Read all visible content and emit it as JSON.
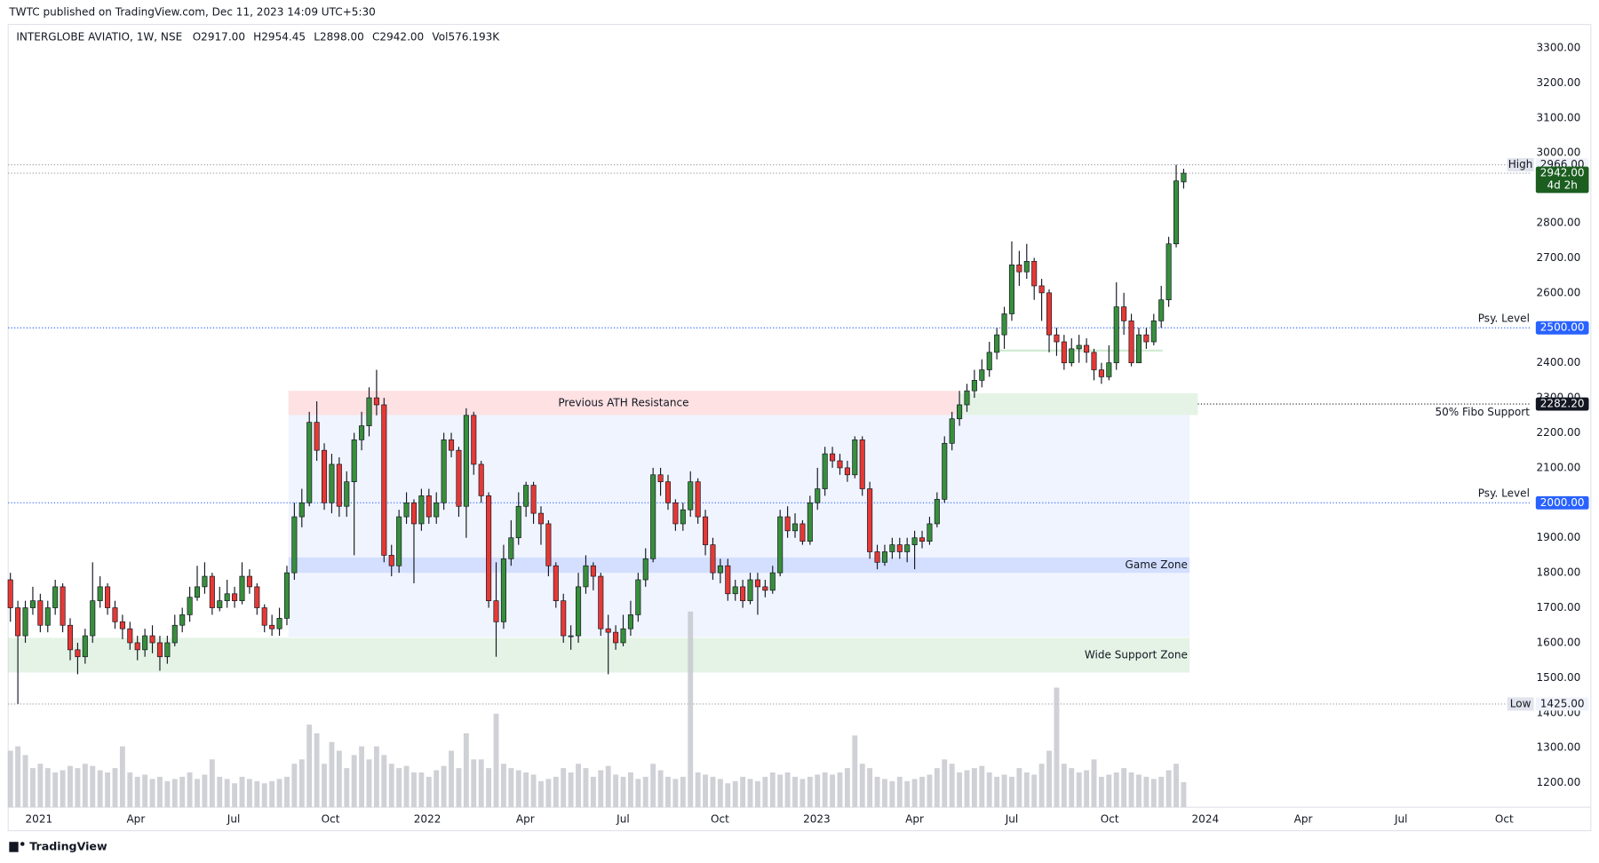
{
  "header": {
    "publisher": "TWTC published on TradingView.com, Dec 11, 2023 14:09 UTC+5:30"
  },
  "footer": {
    "brand": "TradingView"
  },
  "chart_data": {
    "type": "candlestick",
    "symbol": "INTERGLOBE AVIATIO, 1W, NSE",
    "legend_values": [
      {
        "label": "O",
        "text": "2917.00"
      },
      {
        "label": "H",
        "text": "2954.45"
      },
      {
        "label": "L",
        "text": "2898.00"
      },
      {
        "label": "C",
        "text": "2942.00"
      },
      {
        "label": "Vol",
        "text": "576.193K"
      }
    ],
    "up_color": "#388e3c",
    "down_color": "#e53935",
    "volume_color": "#c4c6cc",
    "grid": false,
    "xlim": [
      -0.3,
      203.3
    ],
    "xticks": [
      {
        "value": 3.82,
        "label": "2021"
      },
      {
        "value": 16.78,
        "label": "Apr"
      },
      {
        "value": 29.88,
        "label": "Jul"
      },
      {
        "value": 42.84,
        "label": "Oct"
      },
      {
        "value": 55.8,
        "label": "2022"
      },
      {
        "value": 68.9,
        "label": "Apr"
      },
      {
        "value": 81.99,
        "label": "Jul"
      },
      {
        "value": 94.95,
        "label": "Oct"
      },
      {
        "value": 107.9,
        "label": "2023"
      },
      {
        "value": 121.0,
        "label": "Apr"
      },
      {
        "value": 134.0,
        "label": "Jul"
      },
      {
        "value": 147.1,
        "label": "Oct"
      },
      {
        "value": 159.9,
        "label": "2024"
      },
      {
        "value": 173.0,
        "label": "Apr"
      },
      {
        "value": 186.1,
        "label": "Jul"
      },
      {
        "value": 199.9,
        "label": "Oct"
      }
    ],
    "ylim": [
      1130,
      3367
    ],
    "yticks": [
      {
        "value": 1200,
        "label": "1200.00"
      },
      {
        "value": 1300,
        "label": "1300.00"
      },
      {
        "value": 1400,
        "label": "1400.00"
      },
      {
        "value": 1500,
        "label": "1500.00"
      },
      {
        "value": 1600,
        "label": "1600.00"
      },
      {
        "value": 1700,
        "label": "1700.00"
      },
      {
        "value": 1800,
        "label": "1800.00"
      },
      {
        "value": 1900,
        "label": "1900.00"
      },
      {
        "value": 2000,
        "label": "2000.00"
      },
      {
        "value": 2100,
        "label": "2100.00"
      },
      {
        "value": 2200,
        "label": "2200.00"
      },
      {
        "value": 2300,
        "label": "2300.00"
      },
      {
        "value": 2400,
        "label": "2400.00"
      },
      {
        "value": 2500,
        "label": "2500.00"
      },
      {
        "value": 2600,
        "label": "2600.00"
      },
      {
        "value": 2700,
        "label": "2700.00"
      },
      {
        "value": 2800,
        "label": "2800.00"
      },
      {
        "value": 2900,
        "label": "2900.00"
      },
      {
        "value": 3000,
        "label": "3000.00"
      },
      {
        "value": 3100,
        "label": "3100.00"
      },
      {
        "value": 3200,
        "label": "3200.00"
      },
      {
        "value": 3300,
        "label": "3300.00"
      }
    ],
    "open": [
      1780,
      1700,
      1620,
      1700,
      1720,
      1650,
      1700,
      1760,
      1650,
      1580,
      1560,
      1620,
      1720,
      1760,
      1700,
      1660,
      1640,
      1600,
      1580,
      1620,
      1600,
      1560,
      1600,
      1650,
      1680,
      1730,
      1760,
      1790,
      1700,
      1720,
      1740,
      1720,
      1790,
      1760,
      1700,
      1650,
      1640,
      1670,
      1800,
      1960,
      2000,
      2230,
      2150,
      2000,
      2110,
      1990,
      2060,
      2180,
      2220,
      2300,
      2280,
      1850,
      1820,
      1960,
      2000,
      1940,
      2020,
      1960,
      2000,
      2180,
      2150,
      1990,
      2250,
      2110,
      2020,
      1720,
      1660,
      1840,
      1900,
      1990,
      2050,
      1970,
      1940,
      1820,
      1720,
      1620,
      1620,
      1760,
      1820,
      1790,
      1640,
      1630,
      1600,
      1640,
      1680,
      1780,
      1840,
      2080,
      2060,
      2000,
      1940,
      1980,
      2060,
      1960,
      1880,
      1800,
      1820,
      1740,
      1760,
      1720,
      1780,
      1760,
      1750,
      1800,
      1960,
      1920,
      1940,
      1890,
      2000,
      2040,
      2140,
      2120,
      2100,
      2080,
      2180,
      2040,
      1860,
      1830,
      1860,
      1880,
      1860,
      1880,
      1900,
      1890,
      1940,
      2010,
      2170,
      2240,
      2280,
      2320,
      2350,
      2380,
      2430,
      2480,
      2540,
      2680,
      2660,
      2690,
      2620,
      2600,
      2480,
      2460,
      2400,
      2440,
      2450,
      2430,
      2380,
      2360,
      2400,
      2560,
      2520,
      2400,
      2480,
      2460,
      2520,
      2580,
      2740,
      2917
    ],
    "high": [
      1800,
      1720,
      1720,
      1760,
      1740,
      1720,
      1780,
      1770,
      1670,
      1600,
      1640,
      1830,
      1790,
      1770,
      1720,
      1680,
      1660,
      1620,
      1640,
      1650,
      1620,
      1620,
      1680,
      1700,
      1760,
      1820,
      1830,
      1800,
      1760,
      1780,
      1760,
      1830,
      1810,
      1770,
      1710,
      1680,
      1700,
      1820,
      2000,
      2040,
      2260,
      2290,
      2170,
      2140,
      2130,
      2090,
      2200,
      2260,
      2330,
      2380,
      2300,
      1880,
      1980,
      2030,
      2010,
      2040,
      2040,
      2030,
      2200,
      2200,
      2160,
      2270,
      2260,
      2120,
      2030,
      1830,
      1880,
      1950,
      2030,
      2060,
      2060,
      1990,
      1950,
      1830,
      1740,
      1650,
      1800,
      1850,
      1830,
      1800,
      1680,
      1650,
      1680,
      1720,
      1800,
      1870,
      2100,
      2100,
      2080,
      2010,
      2000,
      2090,
      2070,
      1980,
      1900,
      1840,
      1840,
      1780,
      1780,
      1800,
      1800,
      1780,
      1820,
      1980,
      1990,
      1970,
      1950,
      2020,
      2100,
      2160,
      2160,
      2140,
      2120,
      2190,
      2190,
      2060,
      1880,
      1880,
      1900,
      1900,
      1900,
      1920,
      1920,
      1960,
      2030,
      2190,
      2260,
      2320,
      2340,
      2380,
      2410,
      2460,
      2500,
      2560,
      2747,
      2720,
      2740,
      2700,
      2640,
      2610,
      2500,
      2480,
      2470,
      2480,
      2470,
      2440,
      2400,
      2450,
      2630,
      2600,
      2540,
      2500,
      2500,
      2540,
      2620,
      2760,
      2966,
      2954.45
    ],
    "low": [
      1660,
      1425,
      1600,
      1680,
      1630,
      1630,
      1680,
      1630,
      1550,
      1510,
      1540,
      1600,
      1700,
      1680,
      1640,
      1610,
      1580,
      1550,
      1560,
      1570,
      1520,
      1540,
      1590,
      1630,
      1660,
      1720,
      1740,
      1680,
      1690,
      1700,
      1700,
      1710,
      1740,
      1680,
      1630,
      1620,
      1620,
      1650,
      1780,
      1930,
      1990,
      2120,
      1980,
      1970,
      1960,
      1960,
      1850,
      2150,
      2190,
      2250,
      1830,
      1790,
      1800,
      1940,
      1770,
      1920,
      1940,
      1940,
      1980,
      2130,
      1960,
      1900,
      2080,
      2000,
      1700,
      1560,
      1640,
      1820,
      1880,
      1960,
      1940,
      1880,
      1790,
      1700,
      1600,
      1580,
      1600,
      1740,
      1750,
      1620,
      1510,
      1580,
      1590,
      1620,
      1660,
      1760,
      1830,
      2020,
      1980,
      1920,
      1920,
      1960,
      1940,
      1850,
      1780,
      1770,
      1720,
      1720,
      1700,
      1710,
      1680,
      1730,
      1740,
      1790,
      1900,
      1900,
      1880,
      1880,
      1980,
      2020,
      2100,
      2080,
      2060,
      2070,
      2020,
      1840,
      1810,
      1820,
      1840,
      1840,
      1830,
      1810,
      1870,
      1880,
      1930,
      2000,
      2150,
      2220,
      2260,
      2300,
      2330,
      2360,
      2410,
      2440,
      2520,
      2620,
      2640,
      2580,
      2520,
      2430,
      2420,
      2380,
      2390,
      2400,
      2400,
      2350,
      2340,
      2350,
      2380,
      2480,
      2390,
      2410,
      2440,
      2450,
      2500,
      2560,
      2730,
      2898
    ],
    "close": [
      1700,
      1620,
      1700,
      1720,
      1650,
      1700,
      1760,
      1650,
      1580,
      1560,
      1620,
      1720,
      1760,
      1700,
      1660,
      1640,
      1600,
      1580,
      1620,
      1600,
      1560,
      1600,
      1650,
      1680,
      1730,
      1760,
      1790,
      1700,
      1720,
      1740,
      1720,
      1790,
      1760,
      1700,
      1650,
      1640,
      1670,
      1800,
      1960,
      2000,
      2230,
      2150,
      2000,
      2110,
      1990,
      2060,
      2180,
      2220,
      2300,
      2280,
      1850,
      1820,
      1960,
      2000,
      1940,
      2020,
      1960,
      2000,
      2180,
      2150,
      1990,
      2250,
      2110,
      2020,
      1720,
      1660,
      1840,
      1900,
      1990,
      2050,
      1970,
      1940,
      1820,
      1720,
      1620,
      1620,
      1760,
      1820,
      1790,
      1640,
      1630,
      1600,
      1640,
      1680,
      1780,
      1840,
      2080,
      2060,
      2000,
      1940,
      1980,
      2060,
      1960,
      1880,
      1800,
      1820,
      1740,
      1760,
      1720,
      1780,
      1760,
      1750,
      1800,
      1960,
      1920,
      1940,
      1890,
      2000,
      2040,
      2140,
      2120,
      2100,
      2080,
      2180,
      2040,
      1860,
      1830,
      1860,
      1880,
      1860,
      1880,
      1900,
      1890,
      1940,
      2010,
      2170,
      2240,
      2280,
      2320,
      2350,
      2380,
      2430,
      2480,
      2540,
      2680,
      2660,
      2690,
      2620,
      2600,
      2480,
      2460,
      2400,
      2440,
      2450,
      2430,
      2380,
      2360,
      2400,
      2560,
      2520,
      2400,
      2480,
      2460,
      2520,
      2580,
      2740,
      2920,
      2942
    ],
    "volume": [
      1300,
      1400,
      1200,
      900,
      1000,
      900,
      800,
      850,
      950,
      900,
      1000,
      950,
      850,
      800,
      900,
      1400,
      800,
      700,
      750,
      650,
      700,
      600,
      650,
      700,
      800,
      650,
      750,
      1100,
      700,
      650,
      550,
      700,
      650,
      600,
      550,
      600,
      650,
      700,
      1000,
      1100,
      1900,
      1700,
      1000,
      1500,
      1300,
      900,
      1200,
      1400,
      1100,
      1400,
      1200,
      1000,
      900,
      950,
      800,
      800,
      700,
      850,
      950,
      1300,
      900,
      1700,
      1100,
      1100,
      900,
      2150,
      1000,
      900,
      850,
      800,
      750,
      600,
      650,
      700,
      900,
      800,
      1000,
      900,
      700,
      850,
      950,
      750,
      700,
      800,
      650,
      700,
      1000,
      850,
      700,
      650,
      700,
      4500,
      800,
      750,
      700,
      650,
      550,
      600,
      700,
      650,
      600,
      700,
      800,
      750,
      800,
      700,
      650,
      700,
      750,
      800,
      750,
      800,
      900,
      1650,
      1000,
      900,
      700,
      650,
      600,
      700,
      600,
      650,
      700,
      750,
      900,
      1100,
      1000,
      800,
      850,
      900,
      950,
      800,
      700,
      750,
      700,
      900,
      800,
      750,
      1000,
      1300,
      2750,
      1000,
      900,
      800,
      850,
      1100,
      700,
      750,
      800,
      900,
      800,
      750,
      700,
      650,
      700,
      850,
      1000,
      576.193
    ],
    "zones": [
      {
        "top": 2251,
        "bottom": 1616,
        "from": 37.2,
        "to": 157.8,
        "color": "rgba(41,98,255,0.07)"
      },
      {
        "name": "Previous ATH Resistance",
        "top": 2320,
        "bottom": 2251,
        "from": 37.2,
        "to": 126.9,
        "color": "rgba(242,54,69,0.15)",
        "label_align": "center"
      },
      {
        "name": "Game Zone",
        "top": 1844,
        "bottom": 1800,
        "from": 37.2,
        "to": 157.8,
        "color": "rgba(41,98,255,0.14)",
        "label_align": "right"
      },
      {
        "name": "Wide Support Zone",
        "top": 1614,
        "bottom": 1515,
        "from": -0.3,
        "to": 157.8,
        "color": "rgba(76,175,80,0.15)",
        "label_align": "right"
      },
      {
        "top": 2313,
        "bottom": 2251,
        "from": 126.9,
        "to": 158.9,
        "color": "rgba(76,175,80,0.15)"
      },
      {
        "top": 2438,
        "bottom": 2432,
        "from": 131.6,
        "to": 154.2,
        "color": "rgba(76,175,80,0.25)"
      }
    ],
    "levels": [
      {
        "name": "High",
        "price": {
          "value": 2966,
          "label": "2966.00"
        },
        "line_color": "#9598a1",
        "badge_color": "#f0f3fa",
        "badge_text_color": "#131722",
        "name_style": "box"
      },
      {
        "price": {
          "value": 2942,
          "label": "2942.00"
        },
        "countdown": "4d 2h",
        "line_color": "#9598a1",
        "badge_color": "#1b5e20",
        "badge_text_color": "#ffffff"
      },
      {
        "name": "Psy. Level",
        "price": {
          "value": 2500,
          "label": "2500.00"
        },
        "line_color": "#2962ff",
        "badge_color": "#2962ff",
        "badge_text_color": "#ffffff",
        "name_style": "above"
      },
      {
        "name": "50% Fibo Support",
        "price": {
          "value": 2282.2,
          "label": "2282.20"
        },
        "from": 158.9,
        "line_color": "#131722",
        "badge_color": "#131722",
        "badge_text_color": "#ffffff",
        "name_style": "below"
      },
      {
        "name": "Psy. Level",
        "price": {
          "value": 2000,
          "label": "2000.00"
        },
        "line_color": "#2962ff",
        "badge_color": "#2962ff",
        "badge_text_color": "#ffffff",
        "name_style": "above"
      },
      {
        "name": "Low",
        "price": {
          "value": 1425,
          "label": "1425.00"
        },
        "line_color": "#9598a1",
        "badge_color": "#f0f3fa",
        "badge_text_color": "#131722",
        "name_style": "box"
      }
    ]
  }
}
